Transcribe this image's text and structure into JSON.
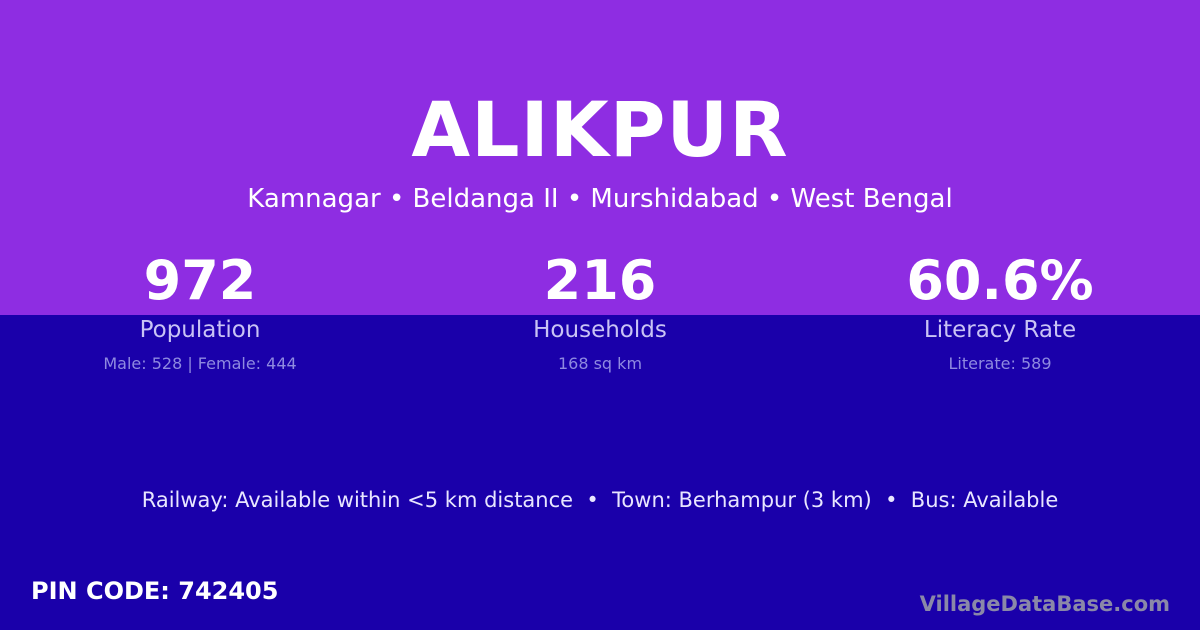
{
  "colors": {
    "header_bg": "#8e2de2",
    "body_bg": "#1a00aa"
  },
  "village": {
    "name": "ALIKPUR",
    "location": "Kamnagar • Beldanga II • Murshidabad • West Bengal"
  },
  "stats": [
    {
      "value": "972",
      "label": "Population",
      "detail": "Male: 528 | Female: 444"
    },
    {
      "value": "216",
      "label": "Households",
      "detail": "168 sq km"
    },
    {
      "value": "60.6%",
      "label": "Literacy Rate",
      "detail": "Literate: 589"
    }
  ],
  "connectivity": "Railway: Available within <5 km distance  •  Town: Berhampur (3 km)  •  Bus: Available",
  "pin_code": "PIN CODE: 742405",
  "brand": "VillageDataBase.com"
}
